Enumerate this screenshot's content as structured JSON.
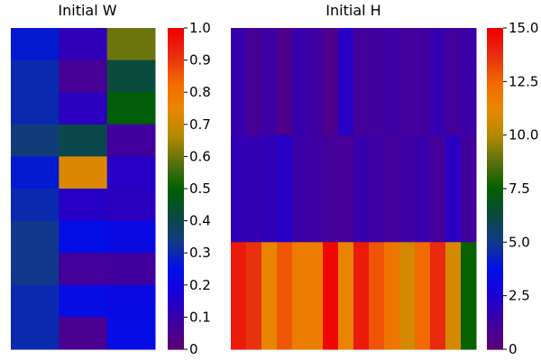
{
  "colormap": [
    "#5a0078",
    "#4000a0",
    "#1a00d6",
    "#0010e8",
    "#123a88",
    "#0a4a40",
    "#006000",
    "#5a7010",
    "#b28a00",
    "#e88800",
    "#f26a00",
    "#e83010",
    "#f00000"
  ],
  "chart_data": [
    {
      "type": "heatmap",
      "title": "Initial W",
      "rows": 10,
      "cols": 3,
      "clim": [
        0,
        1
      ],
      "colorbar_ticks": [
        "0",
        "0.1",
        "0.2",
        "0.3",
        "0.4",
        "0.5",
        "0.6",
        "0.7",
        "0.8",
        "0.9",
        "1.0"
      ],
      "values": [
        [
          0.27,
          0.12,
          0.6
        ],
        [
          0.3,
          0.06,
          0.42
        ],
        [
          0.3,
          0.13,
          0.49
        ],
        [
          0.35,
          0.4,
          0.08
        ],
        [
          0.27,
          0.73,
          0.14
        ],
        [
          0.3,
          0.14,
          0.13
        ],
        [
          0.33,
          0.24,
          0.22
        ],
        [
          0.33,
          0.07,
          0.08
        ],
        [
          0.3,
          0.23,
          0.22
        ],
        [
          0.3,
          0.05,
          0.23
        ]
      ]
    },
    {
      "type": "heatmap",
      "title": "Initial H",
      "rows": 3,
      "cols": 16,
      "clim": [
        0,
        15
      ],
      "colorbar_ticks": [
        "0",
        "2.5",
        "5.0",
        "7.5",
        "10.0",
        "12.5",
        "15.0"
      ],
      "values": [
        [
          1.5,
          0.9,
          1.3,
          0.6,
          1.5,
          1.3,
          0.6,
          2.1,
          1.1,
          1.2,
          1.3,
          1.1,
          1.2,
          1.6,
          1.1,
          1.4
        ],
        [
          1.7,
          1.6,
          1.8,
          2.1,
          1.4,
          1.3,
          1.1,
          1.0,
          1.5,
          1.3,
          1.1,
          1.3,
          1.5,
          1.1,
          2.0,
          1.2
        ],
        [
          14.3,
          13.7,
          11.4,
          12.9,
          11.7,
          11.7,
          14.8,
          11.4,
          14.3,
          13.0,
          12.1,
          10.8,
          12.5,
          13.9,
          10.8,
          7.6
        ]
      ]
    }
  ]
}
